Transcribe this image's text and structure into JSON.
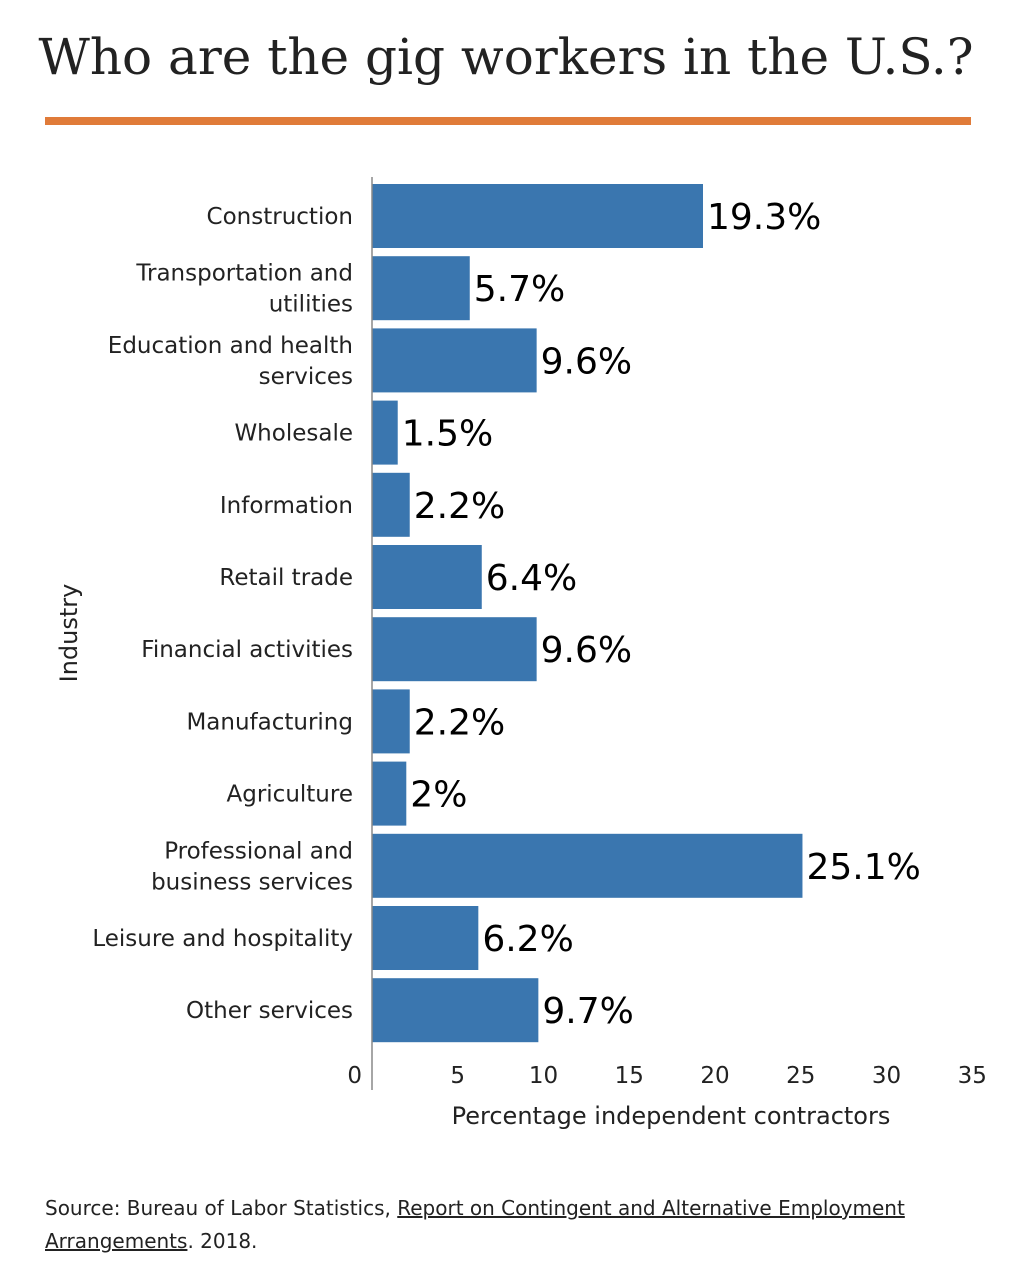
{
  "header": {
    "title": "Who are the gig workers in the U.S.?"
  },
  "colors": {
    "accent": "#e07b39",
    "bar": "#3a76af",
    "axis": "#888888"
  },
  "chart_data": {
    "type": "bar",
    "orientation": "horizontal",
    "categories": [
      "Construction",
      "Transportation and utilities",
      "Education and health services",
      "Wholesale",
      "Information",
      "Retail trade",
      "Financial activities",
      "Manufacturing",
      "Agriculture",
      "Professional and business services",
      "Leisure and hospitality",
      "Other services"
    ],
    "category_lines": [
      [
        "Construction"
      ],
      [
        "Transportation and",
        "utilities"
      ],
      [
        "Education and health",
        "services"
      ],
      [
        "Wholesale"
      ],
      [
        "Information"
      ],
      [
        "Retail trade"
      ],
      [
        "Financial activities"
      ],
      [
        "Manufacturing"
      ],
      [
        "Agriculture"
      ],
      [
        "Professional and",
        "business services"
      ],
      [
        "Leisure and hospitality"
      ],
      [
        "Other services"
      ]
    ],
    "values": [
      19.3,
      5.7,
      9.6,
      1.5,
      2.2,
      6.4,
      9.6,
      2.2,
      2,
      25.1,
      6.2,
      9.7
    ],
    "value_labels": [
      "19.3%",
      "5.7%",
      "9.6%",
      "1.5%",
      "2.2%",
      "6.4%",
      "9.6%",
      "2.2%",
      "2%",
      "25.1%",
      "6.2%",
      "9.7%"
    ],
    "xlabel": "Percentage independent contractors",
    "ylabel": "Industry",
    "xlim": [
      0,
      35
    ],
    "xticks": [
      0,
      5,
      10,
      15,
      20,
      25,
      30,
      35
    ],
    "grid": false,
    "legend": "none"
  },
  "source": {
    "prefix": "Source: Bureau of Labor Statistics, ",
    "link_text": "Report on Contingent and Alternative Employment Arrangements",
    "suffix": ". 2018."
  }
}
